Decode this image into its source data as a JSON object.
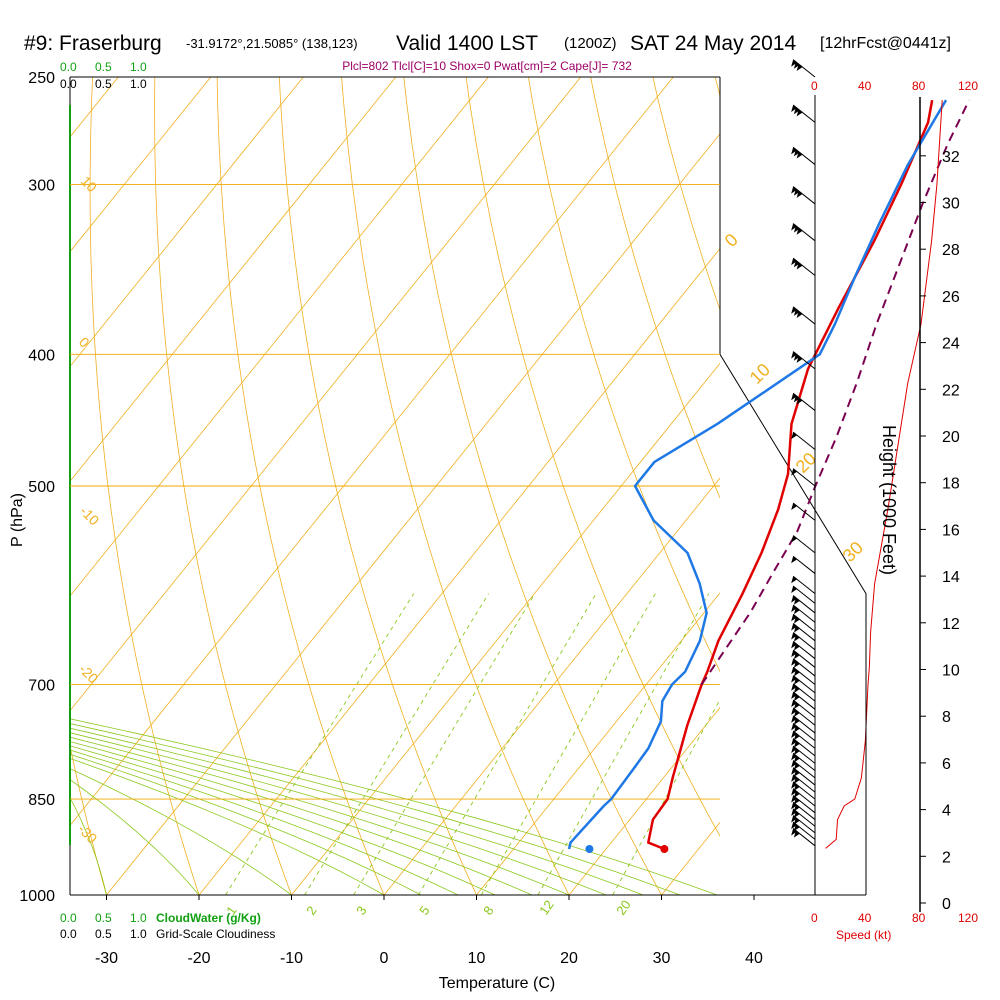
{
  "header": {
    "station": "#9: Fraserburg",
    "coords": "-31.9172°,21.5085° (138,123)",
    "valid": "Valid 1400 LST",
    "zulu": "(1200Z)",
    "date": "SAT 24 May 2014",
    "fcst": "[12hrFcst@0441z]",
    "indices": "Plcl=802 Tlcl[C]=10 Shox=0 Pwat[cm]=2 Cape[J]= 732"
  },
  "scales": {
    "cloudwater_label": "CloudWater (g/Kg)",
    "cloudiness_label": "Grid-Scale Cloudiness",
    "cw_ticks": [
      "0.0",
      "0.5",
      "1.0"
    ],
    "gs_ticks": [
      "0.0",
      "0.5",
      "1.0"
    ],
    "speed_ticks": [
      "0",
      "40",
      "80",
      "120"
    ],
    "speed_label": "Speed (kt)"
  },
  "colors": {
    "isobar": "#f0a800",
    "isotherm": "#f0b020",
    "dry_adiabat": "#f0b020",
    "moist_adiabat": "#8cc81e",
    "mixing_ratio": "#8cc81e",
    "temperature": "#e00000",
    "dewpoint": "#1e78e6",
    "parcel": "#7a0050",
    "cloudwater": "#12a012",
    "speed": "#e00000"
  },
  "chart_data": {
    "type": "line",
    "title": "#9: Fraserburg -31.9172°,21.5085° (138,123) Valid 1400 LST (1200Z) SAT 24 May 2014 [12hrFcst@0441z]",
    "xlabel": "Temperature (C)",
    "ylabel": "P (hPa)",
    "y2label": "Height (1000 Feet)",
    "xlim": [
      -33,
      43
    ],
    "ylim": [
      1000,
      250
    ],
    "x_ticks": [
      -30,
      -20,
      -10,
      0,
      10,
      20,
      30,
      40
    ],
    "y_ticks": [
      250,
      300,
      400,
      500,
      700,
      850,
      1000
    ],
    "height_ticks": [
      0,
      2,
      4,
      6,
      8,
      10,
      12,
      14,
      16,
      18,
      20,
      22,
      24,
      26,
      28,
      30,
      32
    ],
    "isotherm_labels": [
      "10",
      "0",
      "-10",
      "-20",
      "-30"
    ],
    "dry_adiabat_labels": [
      "0",
      "10",
      "20",
      "30"
    ],
    "mixing_ratio_labels": [
      "1",
      "2",
      "3",
      "5",
      "8",
      "12",
      "20"
    ],
    "series": [
      {
        "name": "Temperature",
        "points": [
          [
            26.3,
            925
          ],
          [
            24,
            915
          ],
          [
            22.5,
            880
          ],
          [
            22.3,
            850
          ],
          [
            21,
            820
          ],
          [
            18,
            750
          ],
          [
            16,
            700
          ],
          [
            15.5,
            685
          ],
          [
            14,
            650
          ],
          [
            12.5,
            600
          ],
          [
            11,
            560
          ],
          [
            9,
            520
          ],
          [
            7,
            490
          ],
          [
            3,
            450
          ],
          [
            0,
            410
          ],
          [
            -2,
            370
          ],
          [
            -4,
            330
          ],
          [
            -6,
            300
          ],
          [
            -8.5,
            270
          ],
          [
            -10,
            260
          ]
        ]
      },
      {
        "name": "Dewpoint",
        "points": [
          [
            16,
            925
          ],
          [
            15.6,
            915
          ],
          [
            16,
            860
          ],
          [
            16.2,
            850
          ],
          [
            16,
            810
          ],
          [
            15.8,
            780
          ],
          [
            14.8,
            745
          ],
          [
            13.2,
            720
          ],
          [
            12.8,
            700
          ],
          [
            13.1,
            685
          ],
          [
            12,
            650
          ],
          [
            10.3,
            620
          ],
          [
            7,
            590
          ],
          [
            3,
            560
          ],
          [
            -3.5,
            530
          ],
          [
            -8.5,
            500
          ],
          [
            -8.5,
            480
          ],
          [
            -5,
            450
          ],
          [
            0,
            400
          ],
          [
            -1,
            380
          ],
          [
            -3,
            350
          ],
          [
            -5,
            320
          ],
          [
            -7,
            290
          ],
          [
            -8.5,
            260
          ]
        ]
      },
      {
        "name": "Parcel",
        "points": [
          [
            16,
            700
          ],
          [
            15.5,
            660
          ],
          [
            15,
            620
          ],
          [
            14,
            580
          ],
          [
            13,
            540
          ],
          [
            11,
            500
          ],
          [
            9,
            460
          ],
          [
            6.5,
            420
          ],
          [
            3.5,
            380
          ],
          [
            0.5,
            340
          ],
          [
            -2,
            310
          ],
          [
            -4.5,
            280
          ],
          [
            -6,
            260
          ]
        ]
      },
      {
        "name": "Speed",
        "points": [
          [
            8,
            924
          ],
          [
            16,
            910
          ],
          [
            17,
            880
          ],
          [
            22,
            860
          ],
          [
            30,
            850
          ],
          [
            35,
            820
          ],
          [
            38,
            770
          ],
          [
            40,
            700
          ],
          [
            41,
            680
          ],
          [
            42,
            640
          ],
          [
            45,
            590
          ],
          [
            55,
            520
          ],
          [
            70,
            420
          ],
          [
            80,
            380
          ],
          [
            88,
            330
          ],
          [
            92,
            300
          ],
          [
            96,
            260
          ]
        ]
      }
    ],
    "surface_dewpoint": [
      18.2,
      925
    ],
    "surface_temperature": [
      26.3,
      925
    ],
    "grid": true
  }
}
